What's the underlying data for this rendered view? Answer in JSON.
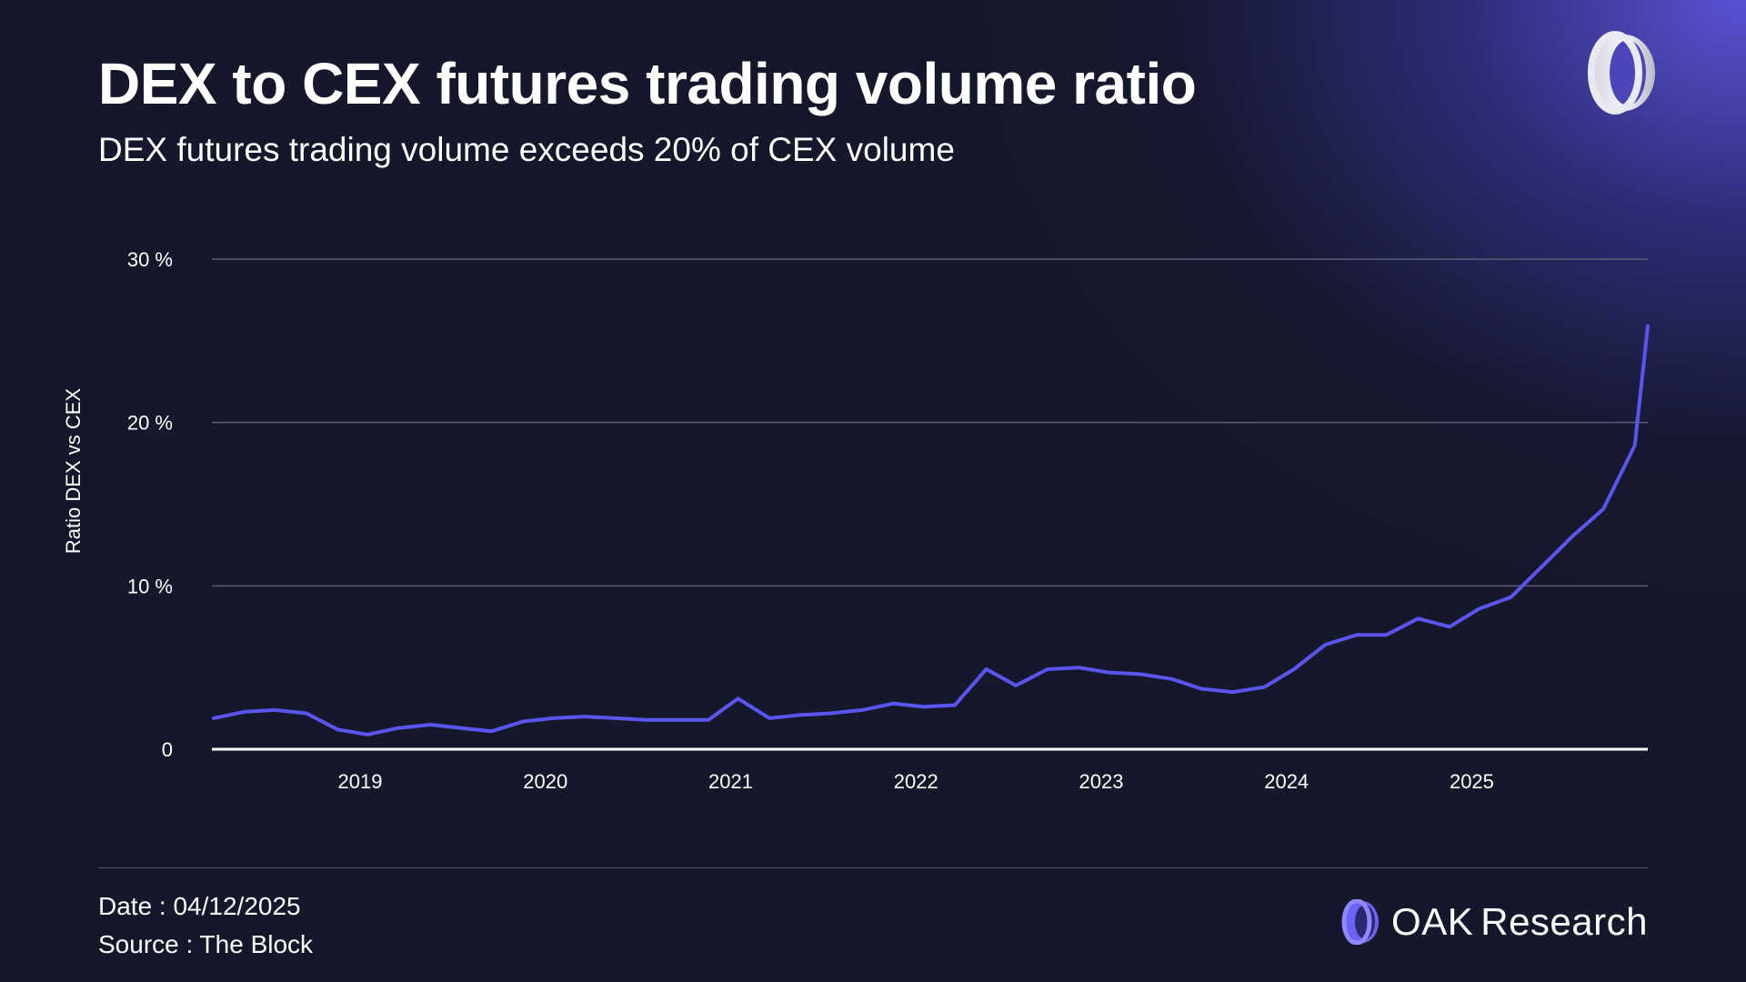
{
  "header": {
    "title": "DEX to CEX futures trading volume ratio",
    "subtitle": "DEX futures trading volume exceeds 20% of CEX volume"
  },
  "footer": {
    "date": "Date : 04/12/2025",
    "source": "Source : The Block",
    "brand_primary": "OAK",
    "brand_secondary": "Research"
  },
  "colors": {
    "line": "#5b55f0",
    "grid": "#5a5d78",
    "axis": "#ffffff",
    "accent": "#6a63f5"
  },
  "chart_data": {
    "type": "line",
    "title": "DEX to CEX futures trading volume ratio",
    "ylabel": "Ratio DEX vs CEX",
    "xlabel": "",
    "ylim": [
      0,
      30
    ],
    "xlim": [
      2018.2,
      2025.95
    ],
    "y_ticks": [
      {
        "value": 0,
        "label": "0"
      },
      {
        "value": 10,
        "label": "10 %"
      },
      {
        "value": 20,
        "label": "20 %"
      },
      {
        "value": 30,
        "label": "30 %"
      }
    ],
    "x_ticks": [
      {
        "value": 2019,
        "label": "2019"
      },
      {
        "value": 2020,
        "label": "2020"
      },
      {
        "value": 2021,
        "label": "2021"
      },
      {
        "value": 2022,
        "label": "2022"
      },
      {
        "value": 2023,
        "label": "2023"
      },
      {
        "value": 2024,
        "label": "2024"
      },
      {
        "value": 2025,
        "label": "2025"
      }
    ],
    "grid": true,
    "series": [
      {
        "x": [
          2018.21,
          2018.38,
          2018.54,
          2018.71,
          2018.88,
          2019.04,
          2019.21,
          2019.38,
          2019.54,
          2019.71,
          2019.88,
          2020.04,
          2020.21,
          2020.38,
          2020.54,
          2020.71,
          2020.88,
          2021.04,
          2021.21,
          2021.38,
          2021.54,
          2021.71,
          2021.88,
          2022.04,
          2022.21,
          2022.38,
          2022.54,
          2022.71,
          2022.88,
          2023.04,
          2023.21,
          2023.38,
          2023.54,
          2023.71,
          2023.88,
          2024.04,
          2024.21,
          2024.38,
          2024.54,
          2024.71,
          2024.88,
          2025.04,
          2025.21,
          2025.38,
          2025.54,
          2025.71,
          2025.88
        ],
        "y": [
          1.9,
          2.3,
          2.4,
          2.2,
          1.2,
          0.9,
          1.3,
          1.5,
          1.3,
          1.1,
          1.7,
          1.9,
          2.0,
          1.9,
          1.8,
          1.8,
          1.8,
          3.1,
          1.9,
          2.1,
          2.2,
          2.4,
          2.8,
          2.6,
          2.7,
          4.9,
          3.9,
          4.9,
          5.0,
          4.7,
          4.6,
          4.3,
          3.7,
          3.5,
          3.8,
          4.9,
          6.4,
          7.0,
          7.0,
          8.0,
          7.5,
          8.6,
          9.3,
          11.2,
          13.0,
          14.7,
          18.6
        ]
      }
    ],
    "last_point": {
      "x": 2025.95,
      "y": 25.9
    }
  }
}
